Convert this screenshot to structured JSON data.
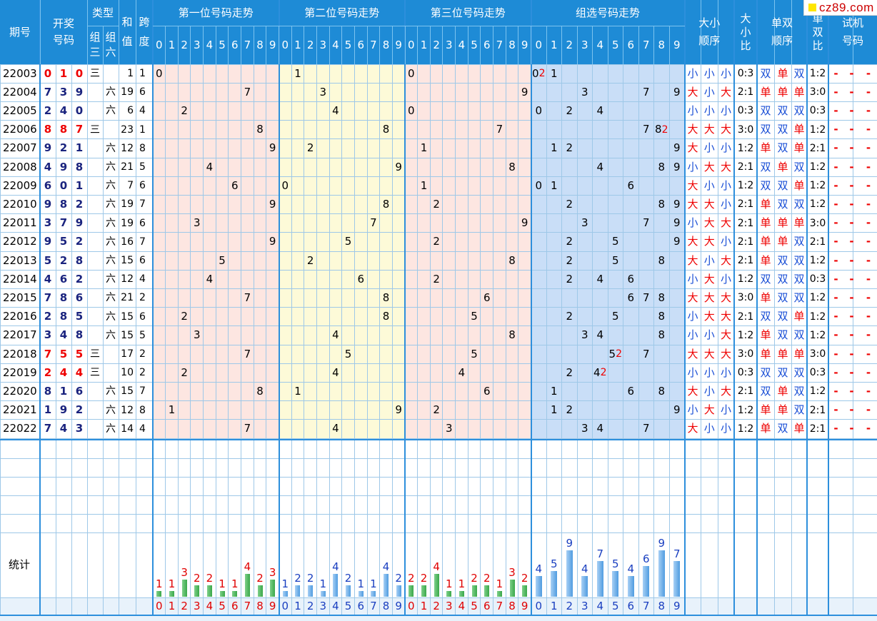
{
  "site_logo": "cz89.com",
  "headers": {
    "issue": "期号",
    "draw": [
      "开奖",
      "号码"
    ],
    "type": "类型",
    "type_sub": [
      [
        "组",
        "三"
      ],
      [
        "组",
        "六"
      ]
    ],
    "sum": [
      "和",
      "值"
    ],
    "span": [
      "跨",
      "度"
    ],
    "pos1": "第一位号码走势",
    "pos2": "第二位号码走势",
    "pos3": "第三位号码走势",
    "group": "组选号码走势",
    "digits": [
      "0",
      "1",
      "2",
      "3",
      "4",
      "5",
      "6",
      "7",
      "8",
      "9"
    ],
    "bs_order": [
      "大小",
      "顺序"
    ],
    "bs_ratio": [
      "大",
      "小",
      "比"
    ],
    "oe_order": [
      "单双",
      "顺序"
    ],
    "oe_ratio": [
      "单",
      "双",
      "比"
    ],
    "trial": [
      "试机",
      "号码"
    ]
  },
  "rows": [
    {
      "issue": "22003",
      "draw": [
        0,
        1,
        0
      ],
      "type": "三",
      "sum": 1,
      "span": 1,
      "bs": [
        "小",
        "小",
        "小"
      ],
      "bs_ratio": "0:3",
      "oe": [
        "双",
        "单",
        "双"
      ],
      "oe_ratio": "1:2",
      "group_rep": 0
    },
    {
      "issue": "22004",
      "draw": [
        7,
        3,
        9
      ],
      "type": "六",
      "sum": 19,
      "span": 6,
      "bs": [
        "大",
        "小",
        "大"
      ],
      "bs_ratio": "2:1",
      "oe": [
        "单",
        "单",
        "单"
      ],
      "oe_ratio": "3:0",
      "group_rep": null
    },
    {
      "issue": "22005",
      "draw": [
        2,
        4,
        0
      ],
      "type": "六",
      "sum": 6,
      "span": 4,
      "bs": [
        "小",
        "小",
        "小"
      ],
      "bs_ratio": "0:3",
      "oe": [
        "双",
        "双",
        "双"
      ],
      "oe_ratio": "0:3",
      "group_rep": null
    },
    {
      "issue": "22006",
      "draw": [
        8,
        8,
        7
      ],
      "type": "三",
      "sum": 23,
      "span": 1,
      "bs": [
        "大",
        "大",
        "大"
      ],
      "bs_ratio": "3:0",
      "oe": [
        "双",
        "双",
        "单"
      ],
      "oe_ratio": "1:2",
      "group_rep": 8
    },
    {
      "issue": "22007",
      "draw": [
        9,
        2,
        1
      ],
      "type": "六",
      "sum": 12,
      "span": 8,
      "bs": [
        "大",
        "小",
        "小"
      ],
      "bs_ratio": "1:2",
      "oe": [
        "单",
        "双",
        "单"
      ],
      "oe_ratio": "2:1",
      "group_rep": null
    },
    {
      "issue": "22008",
      "draw": [
        4,
        9,
        8
      ],
      "type": "六",
      "sum": 21,
      "span": 5,
      "bs": [
        "小",
        "大",
        "大"
      ],
      "bs_ratio": "2:1",
      "oe": [
        "双",
        "单",
        "双"
      ],
      "oe_ratio": "1:2",
      "group_rep": null
    },
    {
      "issue": "22009",
      "draw": [
        6,
        0,
        1
      ],
      "type": "六",
      "sum": 7,
      "span": 6,
      "bs": [
        "大",
        "小",
        "小"
      ],
      "bs_ratio": "1:2",
      "oe": [
        "双",
        "双",
        "单"
      ],
      "oe_ratio": "1:2",
      "group_rep": null
    },
    {
      "issue": "22010",
      "draw": [
        9,
        8,
        2
      ],
      "type": "六",
      "sum": 19,
      "span": 7,
      "bs": [
        "大",
        "大",
        "小"
      ],
      "bs_ratio": "2:1",
      "oe": [
        "单",
        "双",
        "双"
      ],
      "oe_ratio": "1:2",
      "group_rep": null
    },
    {
      "issue": "22011",
      "draw": [
        3,
        7,
        9
      ],
      "type": "六",
      "sum": 19,
      "span": 6,
      "bs": [
        "小",
        "大",
        "大"
      ],
      "bs_ratio": "2:1",
      "oe": [
        "单",
        "单",
        "单"
      ],
      "oe_ratio": "3:0",
      "group_rep": null
    },
    {
      "issue": "22012",
      "draw": [
        9,
        5,
        2
      ],
      "type": "六",
      "sum": 16,
      "span": 7,
      "bs": [
        "大",
        "大",
        "小"
      ],
      "bs_ratio": "2:1",
      "oe": [
        "单",
        "单",
        "双"
      ],
      "oe_ratio": "2:1",
      "group_rep": null
    },
    {
      "issue": "22013",
      "draw": [
        5,
        2,
        8
      ],
      "type": "六",
      "sum": 15,
      "span": 6,
      "bs": [
        "大",
        "小",
        "大"
      ],
      "bs_ratio": "2:1",
      "oe": [
        "单",
        "双",
        "双"
      ],
      "oe_ratio": "1:2",
      "group_rep": null
    },
    {
      "issue": "22014",
      "draw": [
        4,
        6,
        2
      ],
      "type": "六",
      "sum": 12,
      "span": 4,
      "bs": [
        "小",
        "大",
        "小"
      ],
      "bs_ratio": "1:2",
      "oe": [
        "双",
        "双",
        "双"
      ],
      "oe_ratio": "0:3",
      "group_rep": null
    },
    {
      "issue": "22015",
      "draw": [
        7,
        8,
        6
      ],
      "type": "六",
      "sum": 21,
      "span": 2,
      "bs": [
        "大",
        "大",
        "大"
      ],
      "bs_ratio": "3:0",
      "oe": [
        "单",
        "双",
        "双"
      ],
      "oe_ratio": "1:2",
      "group_rep": null
    },
    {
      "issue": "22016",
      "draw": [
        2,
        8,
        5
      ],
      "type": "六",
      "sum": 15,
      "span": 6,
      "bs": [
        "小",
        "大",
        "大"
      ],
      "bs_ratio": "2:1",
      "oe": [
        "双",
        "双",
        "单"
      ],
      "oe_ratio": "1:2",
      "group_rep": null
    },
    {
      "issue": "22017",
      "draw": [
        3,
        4,
        8
      ],
      "type": "六",
      "sum": 15,
      "span": 5,
      "bs": [
        "小",
        "小",
        "大"
      ],
      "bs_ratio": "1:2",
      "oe": [
        "单",
        "双",
        "双"
      ],
      "oe_ratio": "1:2",
      "group_rep": null
    },
    {
      "issue": "22018",
      "draw": [
        7,
        5,
        5
      ],
      "type": "三",
      "sum": 17,
      "span": 2,
      "bs": [
        "大",
        "大",
        "大"
      ],
      "bs_ratio": "3:0",
      "oe": [
        "单",
        "单",
        "单"
      ],
      "oe_ratio": "3:0",
      "group_rep": 5
    },
    {
      "issue": "22019",
      "draw": [
        2,
        4,
        4
      ],
      "type": "三",
      "sum": 10,
      "span": 2,
      "bs": [
        "小",
        "小",
        "小"
      ],
      "bs_ratio": "0:3",
      "oe": [
        "双",
        "双",
        "双"
      ],
      "oe_ratio": "0:3",
      "group_rep": 4
    },
    {
      "issue": "22020",
      "draw": [
        8,
        1,
        6
      ],
      "type": "六",
      "sum": 15,
      "span": 7,
      "bs": [
        "大",
        "小",
        "大"
      ],
      "bs_ratio": "2:1",
      "oe": [
        "双",
        "单",
        "双"
      ],
      "oe_ratio": "1:2",
      "group_rep": null
    },
    {
      "issue": "22021",
      "draw": [
        1,
        9,
        2
      ],
      "type": "六",
      "sum": 12,
      "span": 8,
      "bs": [
        "小",
        "大",
        "小"
      ],
      "bs_ratio": "1:2",
      "oe": [
        "单",
        "单",
        "双"
      ],
      "oe_ratio": "2:1",
      "group_rep": null
    },
    {
      "issue": "22022",
      "draw": [
        7,
        4,
        3
      ],
      "type": "六",
      "sum": 14,
      "span": 4,
      "bs": [
        "大",
        "小",
        "小"
      ],
      "bs_ratio": "1:2",
      "oe": [
        "单",
        "双",
        "单"
      ],
      "oe_ratio": "2:1",
      "group_rep": null
    }
  ],
  "trial_placeholder": "-",
  "stats_label": "统计",
  "chart_data": {
    "type": "bar",
    "categories": [
      "0",
      "1",
      "2",
      "3",
      "4",
      "5",
      "6",
      "7",
      "8",
      "9"
    ],
    "series": [
      {
        "values": [
          1,
          1,
          3,
          2,
          2,
          1,
          1,
          4,
          2,
          3
        ]
      },
      {
        "values": [
          1,
          2,
          2,
          1,
          4,
          2,
          1,
          1,
          4,
          2
        ]
      },
      {
        "values": [
          2,
          2,
          4,
          1,
          1,
          2,
          2,
          1,
          3,
          2
        ]
      },
      {
        "values": [
          4,
          5,
          9,
          4,
          7,
          5,
          4,
          6,
          9,
          7
        ]
      }
    ]
  },
  "colors": {
    "header_bg": "#1e8bd6",
    "header_line": "#7cc3ef",
    "pos1_bg": "#fde6e1",
    "pos2_bg": "#fdfad8",
    "pos3_bg": "#fde6e1",
    "group_bg": "#c9def7",
    "grid": "#9ec8e8",
    "grid_strong": "#2d8fdc",
    "bar_green": "#3aa84a",
    "bar_blue": "#4f9ce0",
    "label_red": "#e00000",
    "label_blue": "#1a3fc0"
  }
}
